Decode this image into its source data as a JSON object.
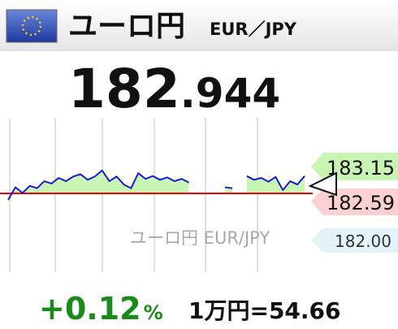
{
  "header": {
    "title": "ユーロ円",
    "pair": "EUR／JPY"
  },
  "price": {
    "integer": "182",
    "decimal": ".944"
  },
  "chart": {
    "type": "line",
    "values": [
      182.45,
      182.72,
      182.6,
      182.75,
      182.7,
      182.85,
      182.8,
      182.92,
      182.85,
      182.95,
      183.0,
      182.88,
      182.95,
      183.08,
      182.85,
      182.95,
      182.78,
      182.7,
      183.02,
      182.9,
      182.96,
      182.88,
      182.93,
      182.85,
      182.9,
      182.82,
      null,
      null,
      null,
      null,
      182.72,
      182.7,
      null,
      182.96,
      182.88,
      182.92,
      182.84,
      182.94,
      182.66,
      182.85,
      182.78,
      182.96
    ],
    "ylim": [
      181.0,
      184.2
    ],
    "reference": 182.59,
    "color": "#1c1ccc",
    "reference_color": "#d40000",
    "fill_color": "#c8f5b4"
  },
  "levels": [
    "183.15",
    "182.59",
    "182.00"
  ],
  "watermark": "ユーロ円 EUR/JPY",
  "change": {
    "value": "+0.12",
    "unit": "%"
  },
  "conversion": "1万円=54.66"
}
